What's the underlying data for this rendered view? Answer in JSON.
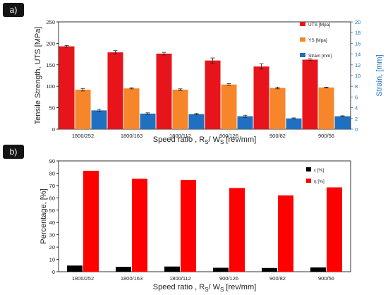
{
  "panels": {
    "a_label": "a)",
    "b_label": "b)"
  },
  "chart_data": [
    {
      "type": "bar",
      "panel": "a)",
      "categories": [
        "1800/252",
        "1800/163",
        "1800/112",
        "900/126",
        "900/82",
        "900/56"
      ],
      "series": [
        {
          "name": "UTS [Mpa]",
          "axis": "left",
          "color": "#e8141c",
          "values": [
            193,
            179,
            176,
            160,
            146,
            162
          ],
          "errors": [
            2,
            4,
            3,
            6,
            6,
            2
          ]
        },
        {
          "name": "YS [Mpa]",
          "axis": "left",
          "color": "#f7862a",
          "values": [
            92,
            95,
            92,
            104,
            96,
            97
          ],
          "errors": [
            3,
            1,
            2,
            2,
            2,
            1
          ]
        },
        {
          "name": "Strain [mm]",
          "axis": "right",
          "color": "#1f70c1",
          "values": [
            3.5,
            2.9,
            2.8,
            2.4,
            2.0,
            2.4
          ],
          "errors": [
            0.2,
            0.15,
            0.12,
            0.2,
            0.1,
            0.1
          ]
        }
      ],
      "ylabel": "Tensile Strength, UTS [MPa]",
      "ylabel_right": "Strain, [mm]",
      "xlabel_main": "Speed ratio , R",
      "xlabel_sub1": "S",
      "xlabel_sep": "/ W",
      "xlabel_sub2": "S",
      "xlabel_unit": " [rev/mm]",
      "ylim": [
        0,
        250
      ],
      "yticks": [
        0,
        50,
        100,
        150,
        200,
        250
      ],
      "ylim_right": [
        0,
        20
      ],
      "yticks_right": [
        0,
        2,
        4,
        6,
        8,
        10,
        12,
        14,
        16,
        18,
        20
      ],
      "legend_position": "top-right",
      "grid": false
    },
    {
      "type": "bar",
      "panel": "b)",
      "categories": [
        "1800/252",
        "1800/163",
        "1800/112",
        "900/126",
        "900/82",
        "900/56"
      ],
      "series": [
        {
          "name": "ε [%]",
          "color": "#000000",
          "values": [
            5,
            4,
            4.2,
            3.2,
            3,
            3.5
          ]
        },
        {
          "name": "η [%]",
          "color": "#ff0000",
          "values": [
            82,
            75.5,
            74.5,
            68,
            62,
            68.5
          ]
        }
      ],
      "ylabel": "Percentage, [%]",
      "xlabel_main": "Speed ratio , R",
      "xlabel_sub1": "S",
      "xlabel_sep": "/ W",
      "xlabel_sub2": "S",
      "xlabel_unit": " [rev/mm]",
      "ylim": [
        0,
        90
      ],
      "yticks": [
        0,
        10,
        20,
        30,
        40,
        50,
        60,
        70,
        80,
        90
      ],
      "legend_position": "top-right",
      "grid": false
    }
  ]
}
